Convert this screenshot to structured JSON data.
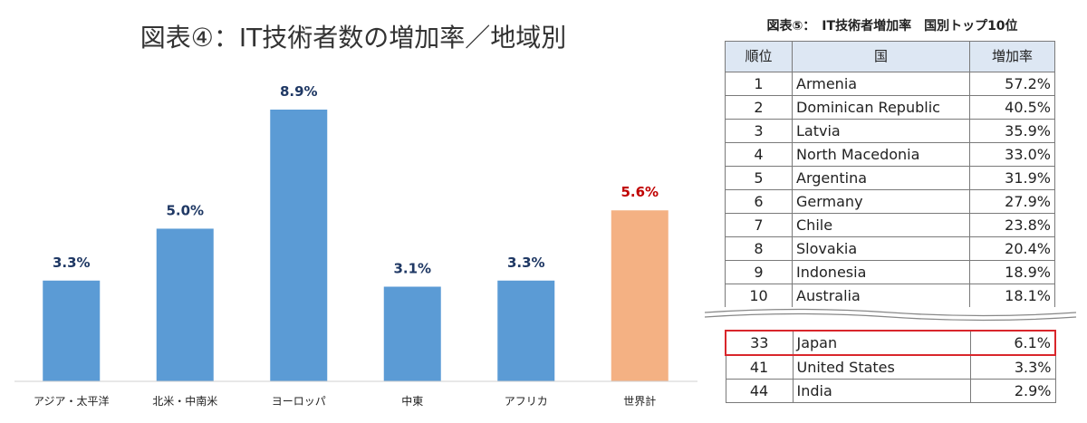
{
  "chart_data": {
    "type": "bar",
    "title": "図表④：IT技術者数の増加率／地域別",
    "categories": [
      "アジア・太平洋",
      "北米・中南米",
      "ヨーロッパ",
      "中東",
      "アフリカ",
      "世界計"
    ],
    "values": [
      3.3,
      5.0,
      8.9,
      3.1,
      3.3,
      5.6
    ],
    "value_labels": [
      "3.3%",
      "5.0%",
      "8.9%",
      "3.1%",
      "3.3%",
      "5.6%"
    ],
    "ylim": [
      0,
      10
    ],
    "grid": false,
    "colors": {
      "bar": "#5b9bd5",
      "highlight_bar": "#f4b183",
      "label": "#1f3864",
      "highlight_label": "#c00000"
    },
    "highlight_index": 5
  },
  "table": {
    "title": "図表⑤：　IT技術者増加率　国別トップ10位",
    "headers": [
      "順位",
      "国",
      "増加率"
    ],
    "top_rows": [
      [
        "1",
        "Armenia",
        "57.2%"
      ],
      [
        "2",
        "Dominican Republic",
        "40.5%"
      ],
      [
        "3",
        "Latvia",
        "35.9%"
      ],
      [
        "4",
        "North Macedonia",
        "33.0%"
      ],
      [
        "5",
        "Argentina",
        "31.9%"
      ],
      [
        "6",
        "Germany",
        "27.9%"
      ],
      [
        "7",
        "Chile",
        "23.8%"
      ],
      [
        "8",
        "Slovakia",
        "20.4%"
      ],
      [
        "9",
        "Indonesia",
        "18.9%"
      ],
      [
        "10",
        "Australia",
        "18.1%"
      ]
    ],
    "bottom_rows": [
      [
        "33",
        "Japan",
        "6.1%"
      ],
      [
        "41",
        "United States",
        "3.3%"
      ],
      [
        "44",
        "India",
        "2.9%"
      ]
    ],
    "highlight_color": "#d9262b"
  }
}
